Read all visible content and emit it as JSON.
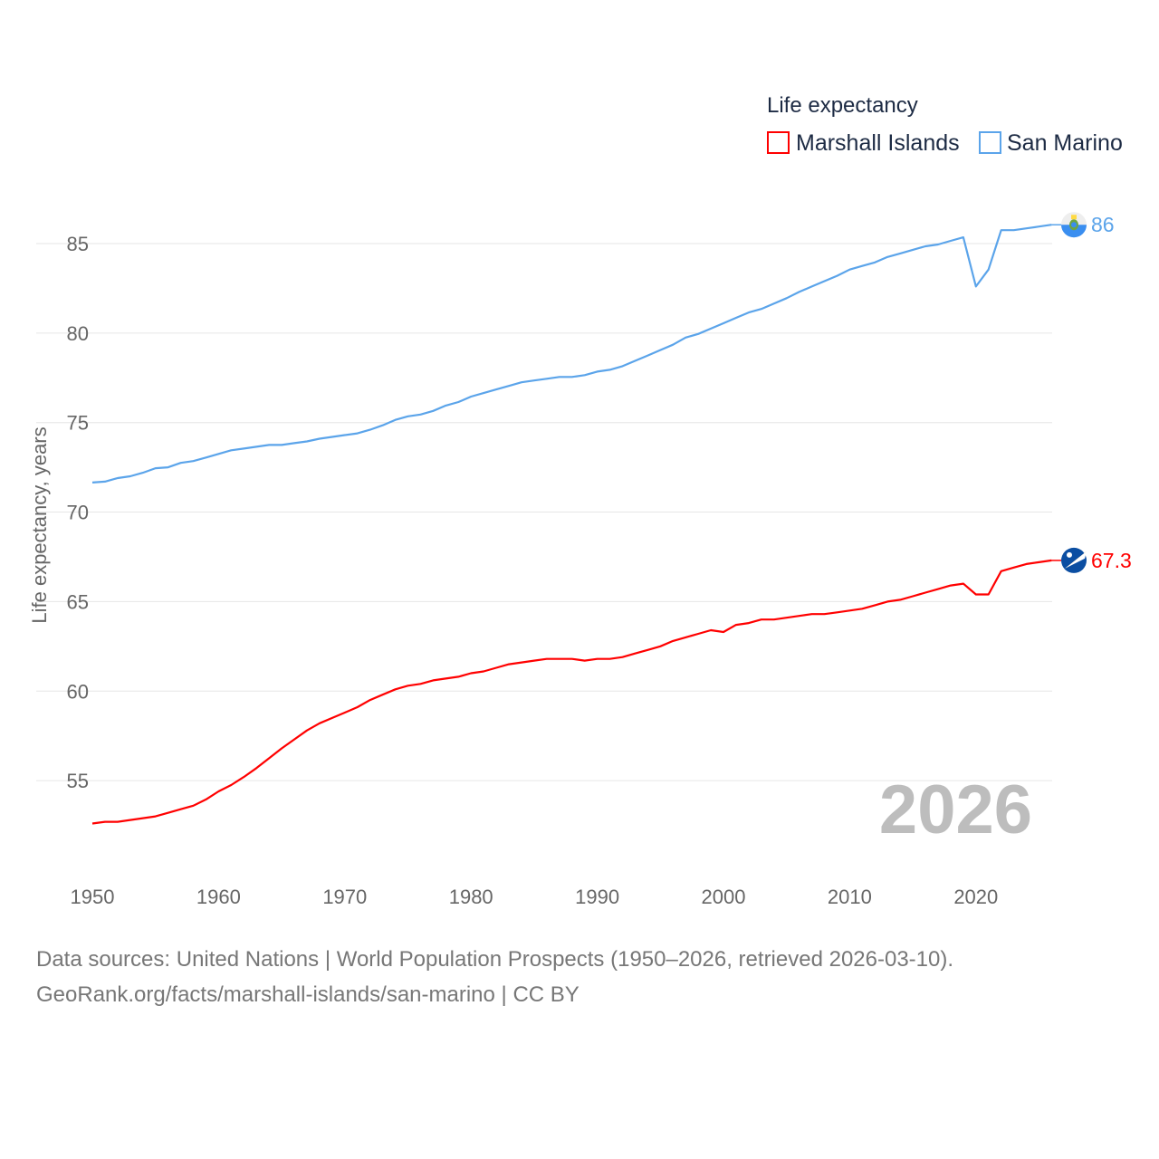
{
  "chart_data": {
    "type": "line",
    "title": "",
    "xlabel": "",
    "ylabel": "Life expectancy, years",
    "xlim": [
      1950,
      2026
    ],
    "x_ticks": [
      "1950",
      "1960",
      "1970",
      "1980",
      "1990",
      "2000",
      "2010",
      "2020"
    ],
    "y_ticks": [
      "55",
      "60",
      "65",
      "70",
      "75",
      "80",
      "85"
    ],
    "grid": true,
    "legend": {
      "title": "Life expectancy",
      "placement": "top-right"
    },
    "year_watermark": "2026",
    "x": [
      1950,
      1951,
      1952,
      1953,
      1954,
      1955,
      1956,
      1957,
      1958,
      1959,
      1960,
      1961,
      1962,
      1963,
      1964,
      1965,
      1966,
      1967,
      1968,
      1969,
      1970,
      1971,
      1972,
      1973,
      1974,
      1975,
      1976,
      1977,
      1978,
      1979,
      1980,
      1981,
      1982,
      1983,
      1984,
      1985,
      1986,
      1987,
      1988,
      1989,
      1990,
      1991,
      1992,
      1993,
      1994,
      1995,
      1996,
      1997,
      1998,
      1999,
      2000,
      2001,
      2002,
      2003,
      2004,
      2005,
      2006,
      2007,
      2008,
      2009,
      2010,
      2011,
      2012,
      2013,
      2014,
      2015,
      2016,
      2017,
      2018,
      2019,
      2020,
      2021,
      2022,
      2023,
      2024,
      2025,
      2026
    ],
    "series": [
      {
        "name": "Marshall Islands",
        "color": "#ff0000",
        "end_label": "67.3",
        "values": [
          52.6,
          52.7,
          52.7,
          52.8,
          52.9,
          53.0,
          53.2,
          53.4,
          53.6,
          53.95,
          54.4,
          54.75,
          55.2,
          55.7,
          56.25,
          56.8,
          57.3,
          57.8,
          58.2,
          58.5,
          58.8,
          59.1,
          59.5,
          59.8,
          60.1,
          60.3,
          60.4,
          60.6,
          60.7,
          60.8,
          61.0,
          61.1,
          61.3,
          61.5,
          61.6,
          61.7,
          61.8,
          61.8,
          61.8,
          61.7,
          61.8,
          61.8,
          61.9,
          62.1,
          62.3,
          62.5,
          62.8,
          63.0,
          63.2,
          63.4,
          63.3,
          63.7,
          63.8,
          64.0,
          64.0,
          64.1,
          64.2,
          64.3,
          64.3,
          64.4,
          64.5,
          64.6,
          64.8,
          65.0,
          65.1,
          65.3,
          65.5,
          65.7,
          65.9,
          66.0,
          65.4,
          65.4,
          66.7,
          66.9,
          67.1,
          67.2,
          67.3
        ]
      },
      {
        "name": "San Marino",
        "color": "#5ba4ea",
        "end_label": "86",
        "values": [
          71.65,
          71.7,
          71.9,
          72.0,
          72.2,
          72.45,
          72.5,
          72.75,
          72.85,
          73.05,
          73.25,
          73.45,
          73.55,
          73.65,
          73.75,
          73.75,
          73.85,
          73.95,
          74.1,
          74.2,
          74.3,
          74.4,
          74.6,
          74.85,
          75.15,
          75.35,
          75.45,
          75.65,
          75.95,
          76.15,
          76.45,
          76.65,
          76.85,
          77.05,
          77.25,
          77.35,
          77.45,
          77.55,
          77.55,
          77.65,
          77.85,
          77.95,
          78.15,
          78.45,
          78.75,
          79.05,
          79.35,
          79.75,
          79.95,
          80.25,
          80.55,
          80.85,
          81.15,
          81.35,
          81.65,
          81.95,
          82.3,
          82.6,
          82.9,
          83.2,
          83.55,
          83.75,
          83.95,
          84.25,
          84.45,
          84.65,
          84.85,
          84.95,
          85.15,
          85.35,
          82.6,
          83.55,
          85.75,
          85.75,
          85.85,
          85.95,
          86.05
        ]
      }
    ]
  },
  "footer": {
    "sources": "Data sources: United Nations | World Population Prospects (1950–2026, retrieved 2026-03-10).",
    "link": "GeoRank.org/facts/marshall-islands/san-marino | CC BY"
  }
}
